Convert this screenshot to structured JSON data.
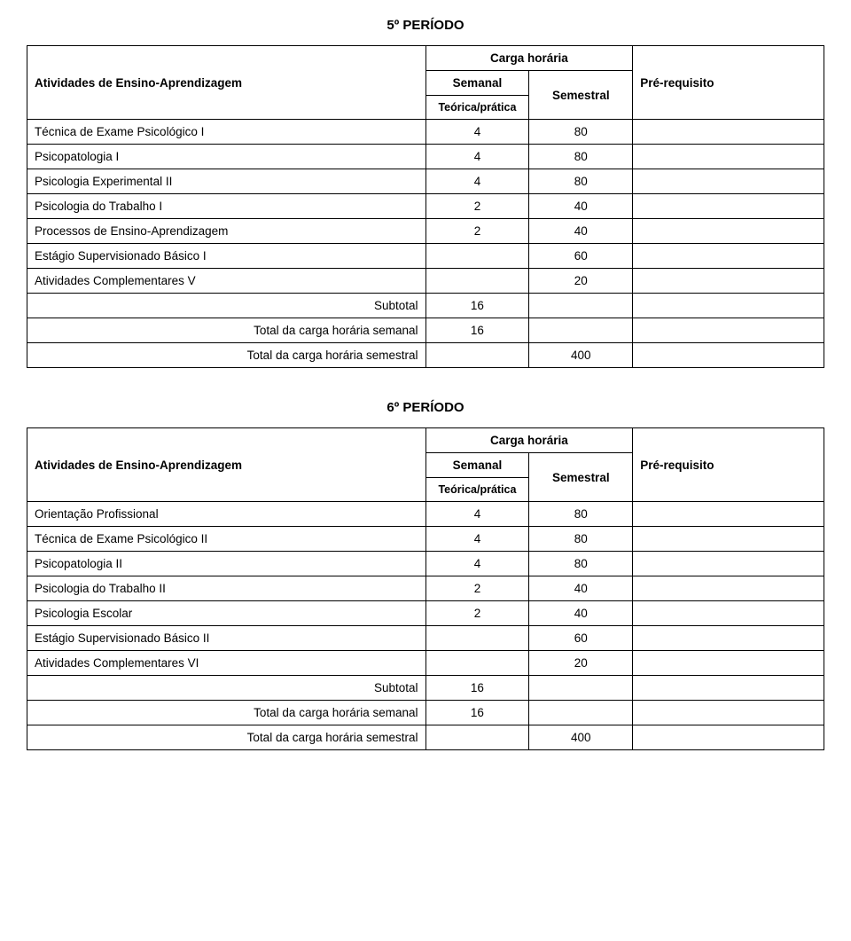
{
  "periodo5": {
    "title": "5º PERÍODO",
    "header": {
      "activities": "Atividades de Ensino-Aprendizagem",
      "carga_horaria": "Carga horária",
      "semanal": "Semanal",
      "semestral": "Semestral",
      "teorica_pratica": "Teórica/prática",
      "pre_requisito": "Pré-requisito"
    },
    "rows": [
      {
        "label": "Técnica de Exame Psicológico I",
        "semanal": "4",
        "semestral": "80",
        "pre": ""
      },
      {
        "label": "Psicopatologia I",
        "semanal": "4",
        "semestral": "80",
        "pre": ""
      },
      {
        "label": "Psicologia Experimental II",
        "semanal": "4",
        "semestral": "80",
        "pre": ""
      },
      {
        "label": "Psicologia do Trabalho I",
        "semanal": "2",
        "semestral": "40",
        "pre": ""
      },
      {
        "label": "Processos de Ensino-Aprendizagem",
        "semanal": "2",
        "semestral": "40",
        "pre": ""
      },
      {
        "label": "Estágio Supervisionado Básico I",
        "semanal": "",
        "semestral": "60",
        "pre": ""
      },
      {
        "label": "Atividades Complementares V",
        "semanal": "",
        "semestral": "20",
        "pre": ""
      }
    ],
    "subtotal": {
      "label": "Subtotal",
      "semanal": "16",
      "semestral": "",
      "pre": ""
    },
    "total_semanal": {
      "label": "Total da carga horária semanal",
      "semanal": "16",
      "semestral": "",
      "pre": ""
    },
    "total_semestral": {
      "label": "Total da carga horária semestral",
      "semanal": "",
      "semestral": "400",
      "pre": ""
    }
  },
  "periodo6": {
    "title": "6º PERÍODO",
    "header": {
      "activities": "Atividades de Ensino-Aprendizagem",
      "carga_horaria": "Carga horária",
      "semanal": "Semanal",
      "semestral": "Semestral",
      "teorica_pratica": "Teórica/prática",
      "pre_requisito": "Pré-requisito"
    },
    "rows": [
      {
        "label": "Orientação Profissional",
        "semanal": "4",
        "semestral": "80",
        "pre": ""
      },
      {
        "label": "Técnica de Exame Psicológico II",
        "semanal": "4",
        "semestral": "80",
        "pre": ""
      },
      {
        "label": "Psicopatologia II",
        "semanal": "4",
        "semestral": "80",
        "pre": ""
      },
      {
        "label": "Psicologia do Trabalho II",
        "semanal": "2",
        "semestral": "40",
        "pre": ""
      },
      {
        "label": "Psicologia Escolar",
        "semanal": "2",
        "semestral": "40",
        "pre": ""
      },
      {
        "label": "Estágio Supervisionado Básico II",
        "semanal": "",
        "semestral": "60",
        "pre": ""
      },
      {
        "label": "Atividades Complementares VI",
        "semanal": "",
        "semestral": "20",
        "pre": ""
      }
    ],
    "subtotal": {
      "label": "Subtotal",
      "semanal": "16",
      "semestral": "",
      "pre": ""
    },
    "total_semanal": {
      "label": "Total da carga horária semanal",
      "semanal": "16",
      "semestral": "",
      "pre": ""
    },
    "total_semestral": {
      "label": "Total da carga horária semestral",
      "semanal": "",
      "semestral": "400",
      "pre": ""
    }
  },
  "style": {
    "background_color": "#ffffff",
    "border_color": "#000000",
    "font_family": "Arial",
    "title_fontsize": 15,
    "cell_fontsize": 13.5,
    "header_fontweight": "bold"
  }
}
